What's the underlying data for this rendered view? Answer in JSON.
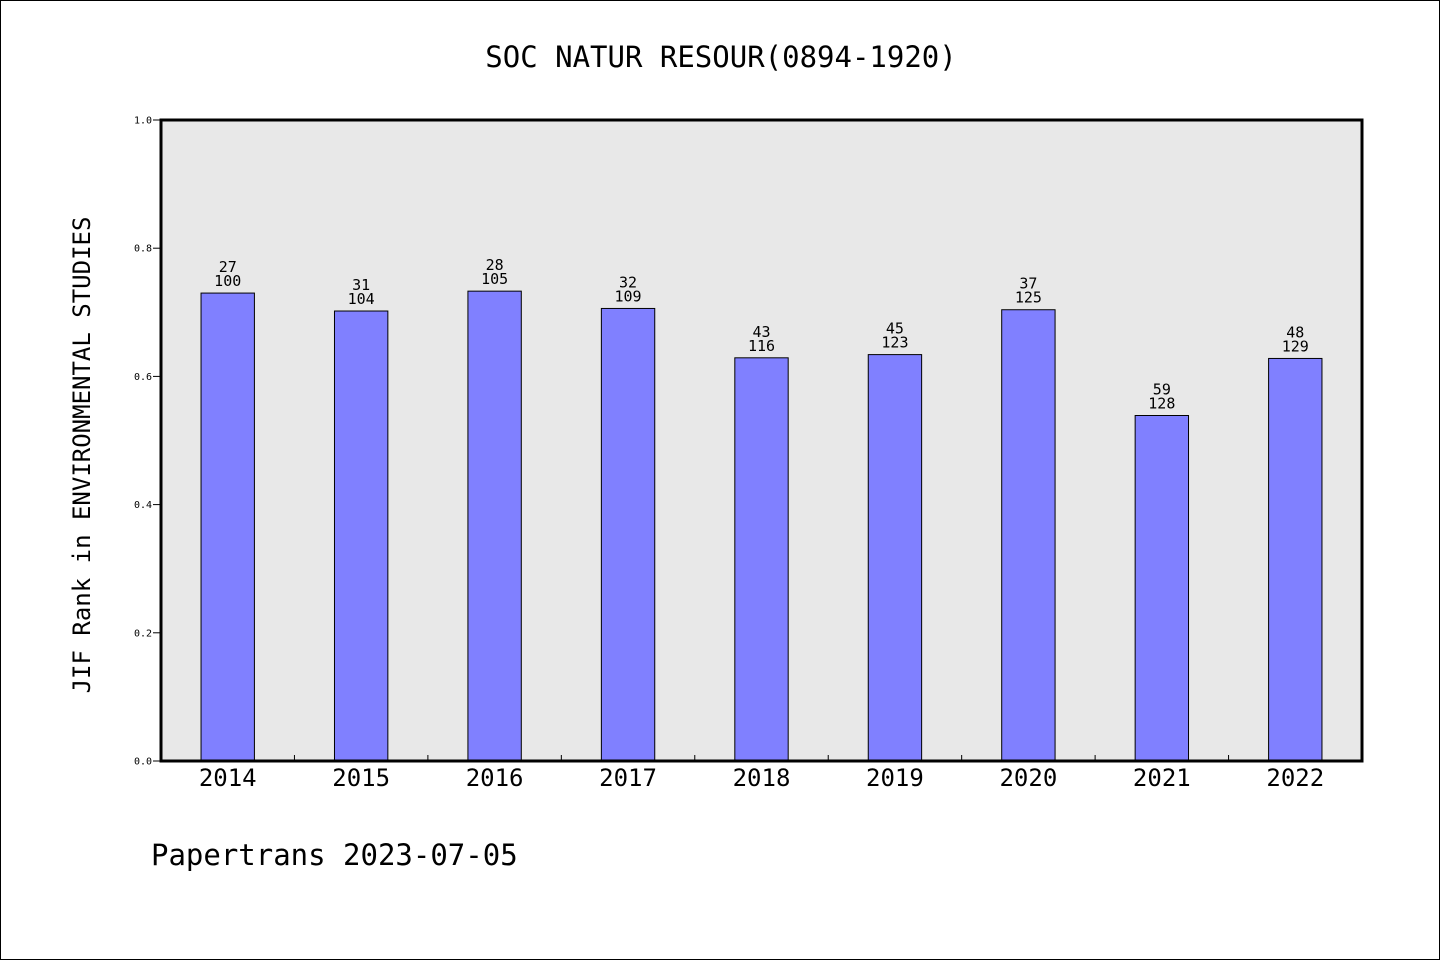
{
  "chart_data": {
    "type": "bar",
    "title": "SOC NATUR RESOUR(0894-1920)",
    "xlabel": "",
    "ylabel": "JIF Rank in ENVIRONMENTAL STUDIES",
    "categories": [
      "2014",
      "2015",
      "2016",
      "2017",
      "2018",
      "2019",
      "2020",
      "2021",
      "2022"
    ],
    "values": [
      0.73,
      0.702,
      0.733,
      0.706,
      0.629,
      0.634,
      0.704,
      0.539,
      0.628
    ],
    "ranks": [
      "27",
      "31",
      "28",
      "32",
      "43",
      "45",
      "37",
      "59",
      "48"
    ],
    "totals": [
      "100",
      "104",
      "105",
      "109",
      "116",
      "123",
      "125",
      "128",
      "129"
    ],
    "ylim": [
      0,
      1.0
    ],
    "yticks": [
      "0.0",
      "0.2",
      "0.4",
      "0.6",
      "0.8",
      "1.0"
    ],
    "grid": false,
    "legend": "none",
    "bar_color": "#8080ff",
    "plot_background": "#e8e8e8"
  },
  "footer": "Papertrans 2023-07-05"
}
